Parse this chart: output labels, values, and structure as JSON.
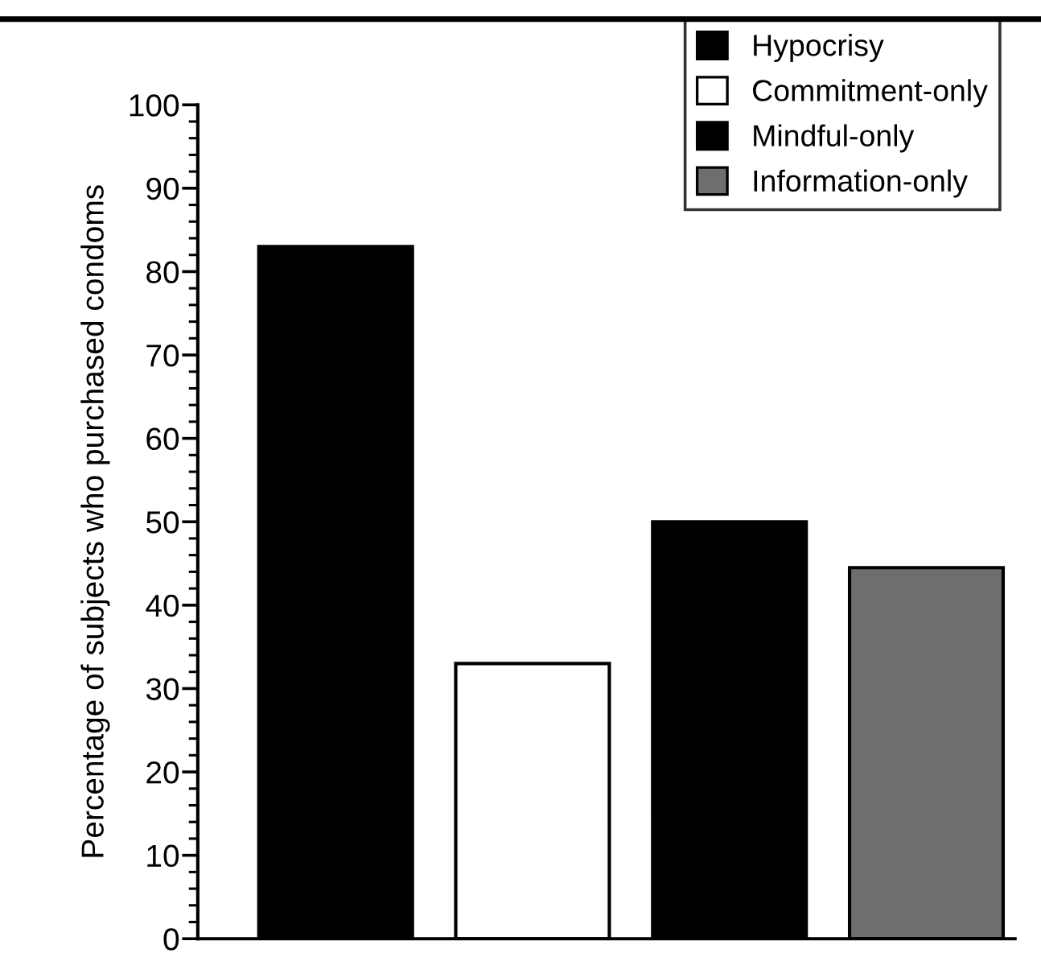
{
  "chart_data": {
    "type": "bar",
    "ylabel": "Percentage of subjects who purchased condoms",
    "categories": [
      null,
      null,
      null,
      null
    ],
    "series": [
      {
        "name": "Hypocrisy",
        "color": "#000000",
        "values": [
          83,
          null,
          null,
          null
        ]
      },
      {
        "name": "Commitment-only",
        "color": "#ffffff",
        "values": [
          null,
          33,
          null,
          null
        ]
      },
      {
        "name": "Mindful-only",
        "color": "#000000",
        "values": [
          null,
          null,
          50,
          null
        ]
      },
      {
        "name": "Information-only",
        "color": "#6e6e6e",
        "values": [
          null,
          null,
          null,
          44.5
        ]
      }
    ],
    "ylim": [
      0,
      100
    ],
    "yticks": [
      0,
      10,
      20,
      30,
      40,
      50,
      60,
      70,
      80,
      90,
      100
    ],
    "grid": false,
    "legend": "top right"
  }
}
